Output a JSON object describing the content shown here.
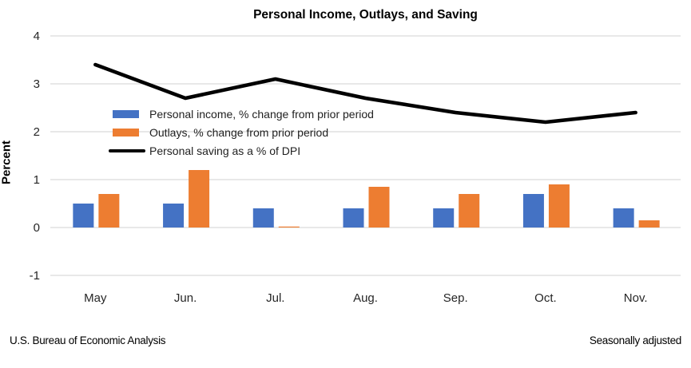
{
  "header": {
    "title": "Personal Income, Outlays, and Saving"
  },
  "footer": {
    "left": "U.S. Bureau of Economic Analysis",
    "right": "Seasonally adjusted"
  },
  "chart_data": {
    "type": "bar",
    "subtype": "grouped-bars-with-line-overlay",
    "title": "Personal Income, Outlays, and Saving",
    "xlabel": "",
    "ylabel": "Percent",
    "categories": [
      "May",
      "Jun.",
      "Jul.",
      "Aug.",
      "Sep.",
      "Oct.",
      "Nov."
    ],
    "series": [
      {
        "name": "Personal income, % change from prior period",
        "type": "bar",
        "color": "#4472C4",
        "values": [
          0.5,
          0.5,
          0.4,
          0.4,
          0.4,
          0.7,
          0.4
        ]
      },
      {
        "name": "Outlays, % change from prior period",
        "type": "bar",
        "color": "#ED7D31",
        "values": [
          0.7,
          1.2,
          0.02,
          0.85,
          0.7,
          0.9,
          0.15
        ]
      },
      {
        "name": "Personal saving as a % of DPI",
        "type": "line",
        "color": "#000000",
        "values": [
          3.4,
          2.7,
          3.1,
          2.7,
          2.4,
          2.2,
          2.4
        ]
      }
    ],
    "yticks": [
      4,
      3,
      2,
      1,
      0,
      -1
    ],
    "ylim": [
      -1,
      4
    ],
    "grid": true,
    "gridline_color": "#D9D9D9",
    "legend_position": "inside-upper-left"
  }
}
